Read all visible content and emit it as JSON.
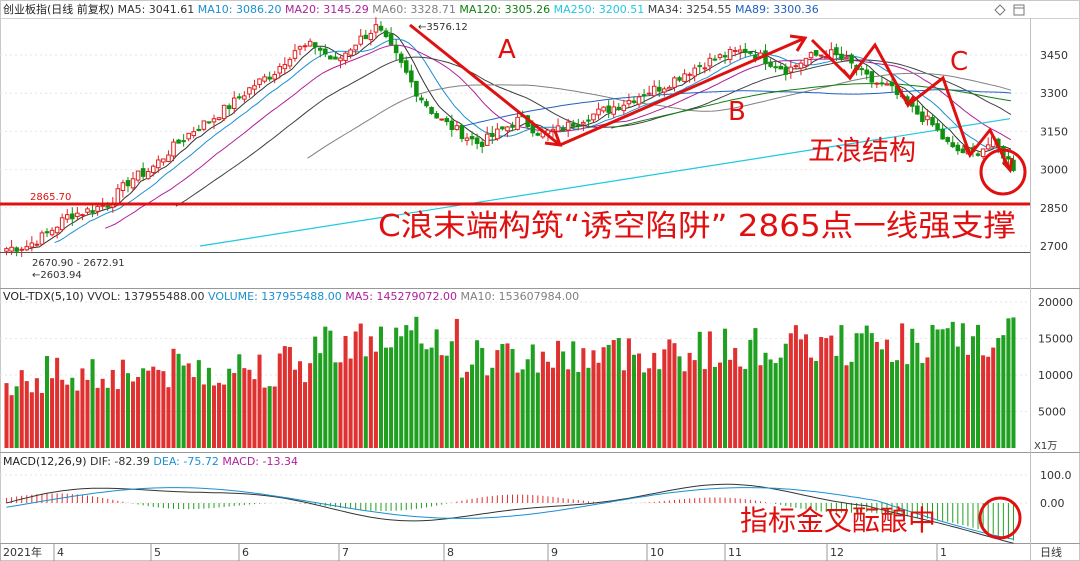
{
  "main_header": {
    "title": "创业板指(日线 前复权)",
    "ma": [
      {
        "label": "MA5: 3041.61",
        "color": "#333333"
      },
      {
        "label": "MA10: 3086.20",
        "color": "#1a8fd0"
      },
      {
        "label": "MA20: 3145.29",
        "color": "#b0209a"
      },
      {
        "label": "MA60: 3328.71",
        "color": "#808080"
      },
      {
        "label": "MA120: 3305.26",
        "color": "#108010"
      },
      {
        "label": "MA250: 3200.51",
        "color": "#20c8e0"
      },
      {
        "label": "MA34: 3254.55",
        "color": "#404040"
      },
      {
        "label": "MA89: 3300.36",
        "color": "#2060c0"
      }
    ]
  },
  "vol_header": {
    "title": "VOL-TDX(5,10)",
    "items": [
      {
        "label": "VVOL: 137955488.00",
        "color": "#333333"
      },
      {
        "label": "VOLUME: 137955488.00",
        "color": "#1a8fd0"
      },
      {
        "label": "MA5: 145279072.00",
        "color": "#b0209a"
      },
      {
        "label": "MA10: 153607984.00",
        "color": "#808080"
      }
    ]
  },
  "macd_header": {
    "title": "MACD(12,26,9)",
    "items": [
      {
        "label": "DIF: -82.39",
        "color": "#333333"
      },
      {
        "label": "DEA: -75.72",
        "color": "#1a8fd0"
      },
      {
        "label": "MACD: -13.34",
        "color": "#b0209a"
      }
    ]
  },
  "chart_data": {
    "type": "candlestick",
    "price_axis": [
      3450,
      3300,
      3150,
      3000,
      2850,
      2700
    ],
    "vol_axis": [
      20000,
      15000,
      10000,
      5000
    ],
    "vol_unit": "X1万",
    "macd_axis": [
      "100.0",
      "0.00"
    ],
    "date_labels": [
      "2021年",
      "4",
      "5",
      "6",
      "7",
      "8",
      "9",
      "10",
      "11",
      "12",
      "1"
    ],
    "period_label": "日线",
    "high_label": "3576.12",
    "low_label": "2603.94",
    "low_range_label": "2670.90 - 2672.91",
    "support_label": "2865.70",
    "support_value": 2865.7,
    "price_path": [
      2690,
      2700,
      2750,
      2820,
      2840,
      2870,
      2960,
      3000,
      3080,
      3150,
      3200,
      3260,
      3330,
      3380,
      3470,
      3490,
      3420,
      3500,
      3560,
      3440,
      3300,
      3200,
      3150,
      3100,
      3150,
      3200,
      3140,
      3160,
      3200,
      3230,
      3260,
      3300,
      3330,
      3380,
      3420,
      3450,
      3470,
      3430,
      3390,
      3440,
      3460,
      3420,
      3350,
      3320,
      3240,
      3180,
      3080,
      3060,
      3110,
      3010
    ]
  },
  "annotations": {
    "wave_a": "A",
    "wave_b": "B",
    "wave_c": "C",
    "five_wave": "五浪结构",
    "trap": "C浪末端构筑“诱空陷阱” 2865点一线强支撑",
    "macd_note": "指标金叉酝酿中"
  },
  "window_icons": [
    "diamond-icon",
    "restore-icon"
  ]
}
